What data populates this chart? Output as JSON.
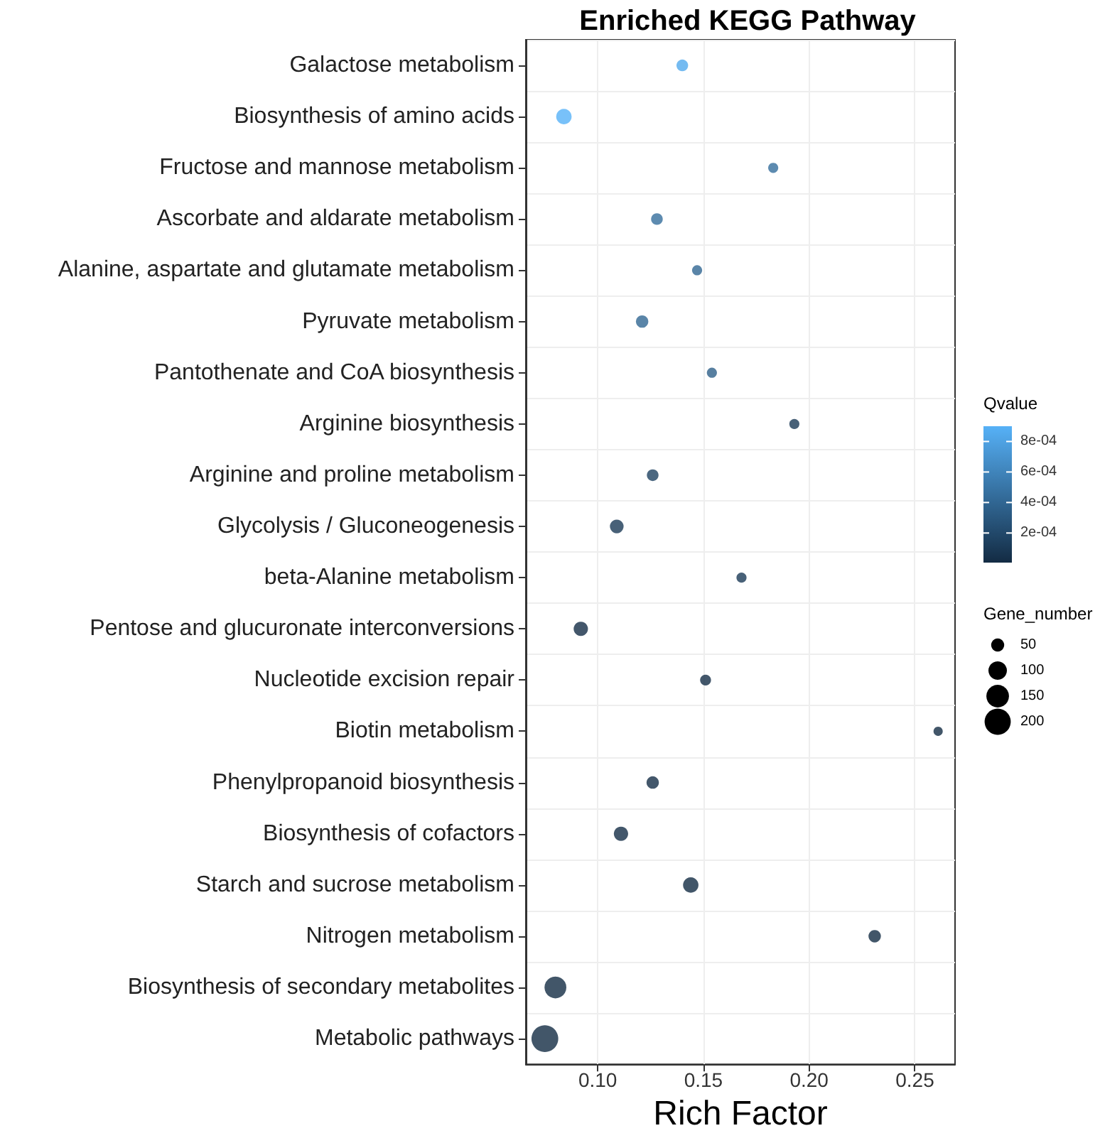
{
  "chart_data": {
    "type": "bubble",
    "title": "Enriched KEGG Pathway",
    "xlabel": "Rich Factor",
    "legend_title": "Gene_number",
    "clabel": "Qvalue",
    "categories": [
      "Galactose metabolism",
      "Biosynthesis of amino acids",
      "Fructose and mannose metabolism",
      "Ascorbate and aldarate metabolism",
      "Alanine, aspartate and glutamate metabolism",
      "Pyruvate metabolism",
      "Pantothenate and CoA biosynthesis",
      "Arginine biosynthesis",
      "Arginine and proline metabolism",
      "Glycolysis / Gluconeogenesis",
      "beta-Alanine metabolism",
      "Pentose and glucuronate interconversions",
      "Nucleotide excision repair",
      "Biotin metabolism",
      "Phenylpropanoid biosynthesis",
      "Biosynthesis of cofactors",
      "Starch and sucrose metabolism",
      "Nitrogen metabolism",
      "Biosynthesis of secondary metabolites",
      "Metabolic pathways"
    ],
    "values": [
      0.14,
      0.084,
      0.183,
      0.128,
      0.147,
      0.121,
      0.154,
      0.193,
      0.126,
      0.109,
      0.168,
      0.092,
      0.151,
      0.261,
      0.126,
      0.111,
      0.144,
      0.231,
      0.08,
      0.075
    ],
    "sizes": [
      40,
      70,
      30,
      40,
      30,
      45,
      30,
      30,
      40,
      55,
      30,
      60,
      35,
      25,
      45,
      60,
      70,
      45,
      140,
      210
    ],
    "cvalues": [
      0.00085,
      0.0009,
      0.00045,
      0.00045,
      0.0004,
      0.0004,
      0.00035,
      0.0001,
      0.00015,
      0.0001,
      0.0001,
      2e-05,
      2e-05,
      1e-05,
      2e-05,
      2e-05,
      1e-05,
      1e-05,
      1e-05,
      1e-05
    ],
    "clim": [
      6e-06,
      0.0009
    ],
    "cticks": [
      {
        "value": 0.0002,
        "label": "2e-04"
      },
      {
        "value": 0.0004,
        "label": "4e-04"
      },
      {
        "value": 0.0006,
        "label": "6e-04"
      },
      {
        "value": 0.0008,
        "label": "8e-04"
      }
    ],
    "size_legend": [
      {
        "value": 50,
        "label": "50"
      },
      {
        "value": 100,
        "label": "100"
      },
      {
        "value": 150,
        "label": "150"
      },
      {
        "value": 200,
        "label": "200"
      }
    ],
    "orientation": "horizontal",
    "xlim": [
      0.066,
      0.269
    ],
    "xticks": [
      {
        "value": 0.1,
        "label": "0.10"
      },
      {
        "value": 0.15,
        "label": "0.15"
      },
      {
        "value": 0.2,
        "label": "0.20"
      },
      {
        "value": 0.25,
        "label": "0.25"
      }
    ],
    "grid": true,
    "marker": "circle"
  }
}
